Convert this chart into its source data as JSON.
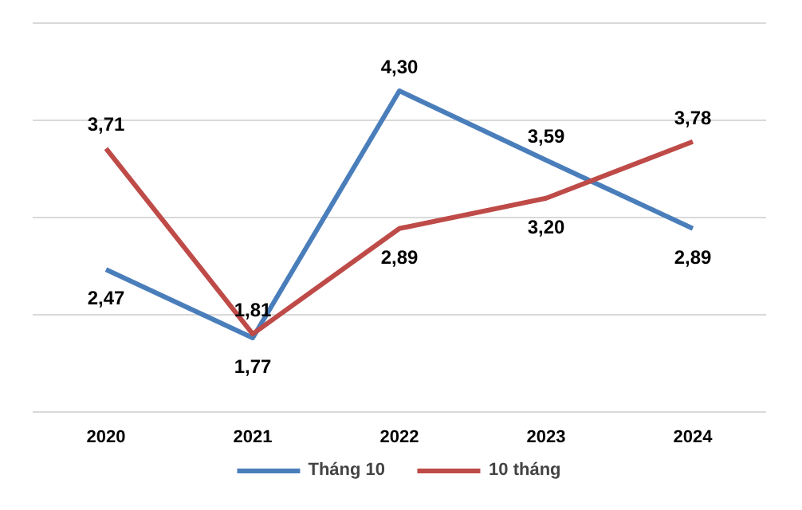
{
  "chart_data": {
    "type": "line",
    "categories": [
      "2020",
      "2021",
      "2022",
      "2023",
      "2024"
    ],
    "series": [
      {
        "name": "Tháng 10",
        "color": "#4a7ebb",
        "values": [
          2.47,
          1.77,
          4.3,
          3.59,
          2.89
        ],
        "value_labels": [
          "2,47",
          "1,77",
          "4,30",
          "3,59",
          "2,89"
        ]
      },
      {
        "name": "10 tháng",
        "color": "#be4b48",
        "values": [
          3.71,
          1.81,
          2.89,
          3.2,
          3.78
        ],
        "value_labels": [
          "3,71",
          "1,81",
          "2,89",
          "3,20",
          "3,78"
        ]
      }
    ],
    "tick_labels": "x",
    "grid": "y",
    "legend": "bottom",
    "line_style": "solid"
  }
}
